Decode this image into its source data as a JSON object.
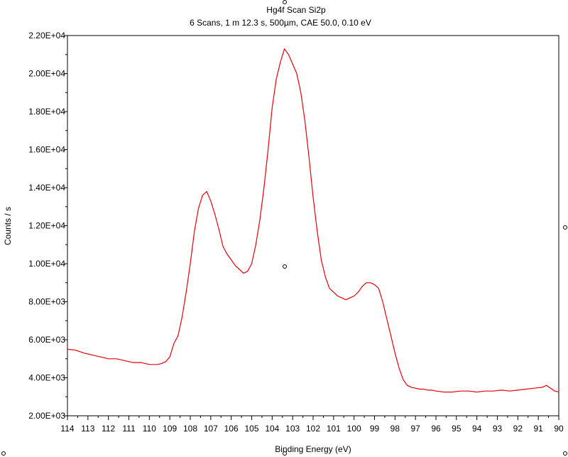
{
  "chart_data": {
    "type": "line",
    "title": "Hg4f Scan      Si2p",
    "subtitle": "6 Scans,  1 m 12.3 s,  500µm,  CAE 50.0,  0.10 eV",
    "xlabel": "Binding Energy (eV)",
    "ylabel": "Counts / s",
    "xlim": [
      114,
      90
    ],
    "ylim": [
      2000,
      22000
    ],
    "x_reversed": true,
    "x_ticks": [
      114,
      113,
      112,
      111,
      110,
      109,
      108,
      107,
      106,
      105,
      104,
      103,
      102,
      101,
      100,
      99,
      98,
      97,
      96,
      95,
      94,
      93,
      92,
      91,
      90
    ],
    "y_ticks": [
      2000,
      4000,
      6000,
      8000,
      10000,
      12000,
      14000,
      16000,
      18000,
      20000,
      22000
    ],
    "y_tick_labels": [
      "2.00E+03",
      "4.00E+03",
      "6.00E+03",
      "8.00E+03",
      "1.00E+04",
      "1.20E+04",
      "1.40E+04",
      "1.60E+04",
      "1.80E+04",
      "2.00E+04",
      "2.20E+04"
    ],
    "grid": false,
    "series": [
      {
        "color": "#e8000b",
        "x": [
          114.0,
          113.6,
          113.2,
          112.8,
          112.4,
          112.0,
          111.6,
          111.2,
          110.8,
          110.4,
          110.0,
          109.6,
          109.4,
          109.2,
          109.0,
          108.8,
          108.6,
          108.4,
          108.2,
          108.0,
          107.8,
          107.6,
          107.4,
          107.2,
          107.0,
          106.8,
          106.6,
          106.4,
          106.2,
          106.0,
          105.8,
          105.6,
          105.4,
          105.2,
          105.0,
          104.8,
          104.6,
          104.4,
          104.2,
          104.0,
          103.8,
          103.6,
          103.4,
          103.2,
          103.0,
          102.8,
          102.6,
          102.4,
          102.2,
          102.0,
          101.8,
          101.6,
          101.4,
          101.2,
          101.0,
          100.8,
          100.6,
          100.4,
          100.2,
          100.0,
          99.8,
          99.6,
          99.4,
          99.2,
          99.0,
          98.8,
          98.6,
          98.4,
          98.2,
          98.0,
          97.8,
          97.6,
          97.4,
          97.2,
          97.0,
          96.8,
          96.6,
          96.4,
          96.2,
          96.0,
          95.6,
          95.2,
          94.8,
          94.4,
          94.0,
          93.6,
          93.2,
          92.8,
          92.4,
          92.0,
          91.6,
          91.2,
          90.8,
          90.6,
          90.4,
          90.2,
          90.0
        ],
        "y": [
          5500,
          5450,
          5300,
          5200,
          5100,
          5000,
          5000,
          4900,
          4800,
          4800,
          4700,
          4700,
          4750,
          4850,
          5100,
          5800,
          6200,
          7200,
          8500,
          10000,
          11700,
          12900,
          13600,
          13800,
          13300,
          12600,
          11800,
          10900,
          10500,
          10200,
          9900,
          9700,
          9500,
          9600,
          10000,
          11000,
          12300,
          14000,
          16000,
          18200,
          19700,
          20600,
          21300,
          21000,
          20500,
          20000,
          19000,
          17500,
          15600,
          13500,
          11700,
          10200,
          9300,
          8700,
          8500,
          8300,
          8200,
          8100,
          8200,
          8300,
          8500,
          8800,
          9000,
          9000,
          8900,
          8700,
          8000,
          7100,
          6200,
          5300,
          4500,
          3900,
          3600,
          3500,
          3450,
          3400,
          3400,
          3350,
          3350,
          3300,
          3250,
          3250,
          3300,
          3300,
          3250,
          3300,
          3300,
          3350,
          3300,
          3350,
          3400,
          3450,
          3500,
          3600,
          3450,
          3300,
          3250
        ]
      }
    ]
  }
}
